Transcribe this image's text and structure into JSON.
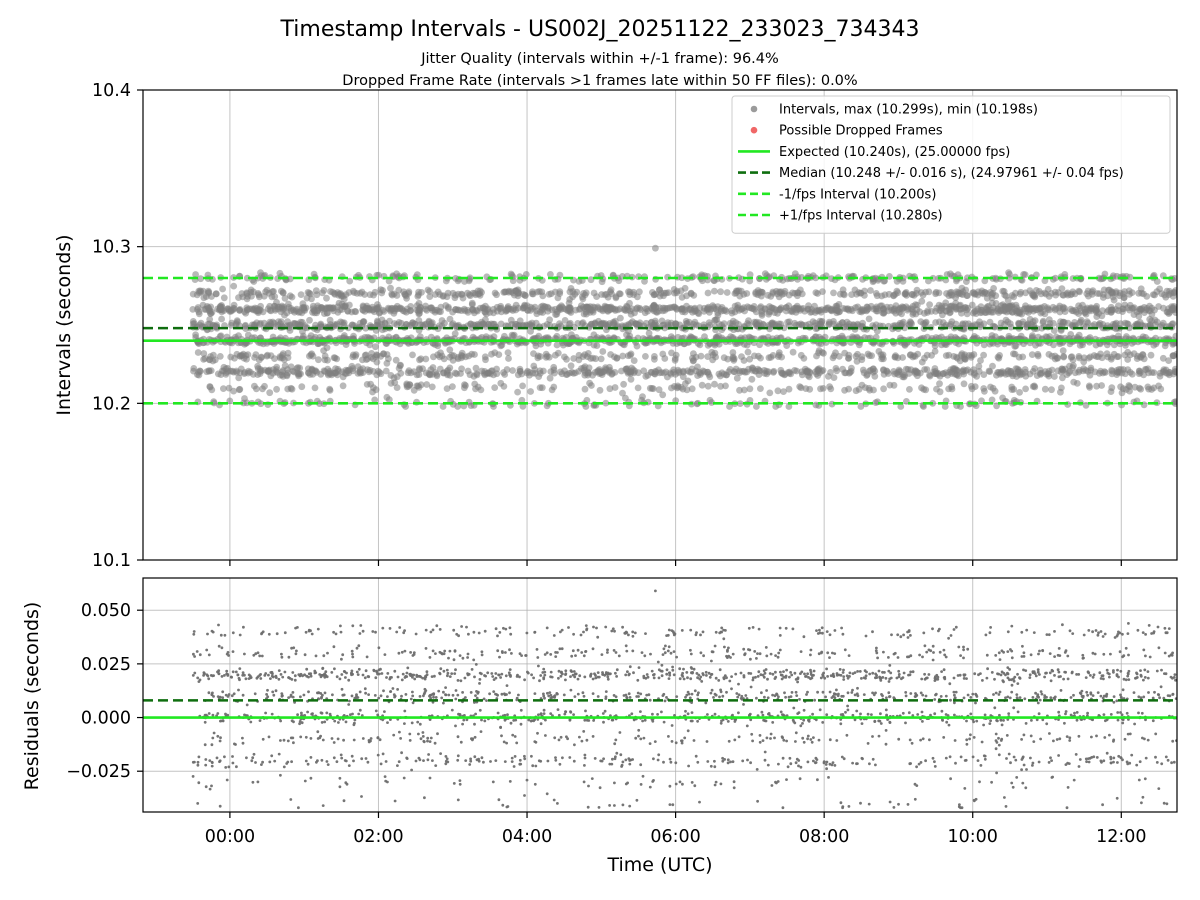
{
  "chart_data": [
    {
      "type": "scatter",
      "title": "Timestamp Intervals - US002J_20251122_233023_734343",
      "subtitle_lines": [
        "Jitter Quality (intervals within +/-1 frame): 96.4%",
        "Dropped Frame Rate (intervals >1 frames late within 50 FF files): 0.0%"
      ],
      "ylabel": "Intervals (seconds)",
      "ylim": [
        10.1,
        10.4
      ],
      "yticks": [
        10.1,
        10.2,
        10.3,
        10.4
      ],
      "ytick_labels": [
        "10.1",
        "10.2",
        "10.3",
        "10.4"
      ],
      "xlim_hours": [
        -1.17,
        12.75
      ],
      "xticks_hours": [
        0,
        2,
        4,
        6,
        8,
        10,
        12
      ],
      "grid": true,
      "legend_position": "top-right",
      "legend": [
        {
          "label": "Intervals, max (10.299s), min (10.198s)",
          "kind": "marker",
          "color": "#9b9b9b"
        },
        {
          "label": "Possible Dropped Frames",
          "kind": "marker",
          "color": "#f06767"
        },
        {
          "label": "Expected (10.240s), (25.00000 fps)",
          "kind": "solid",
          "color": "#22e822"
        },
        {
          "label": "Median (10.248 +/- 0.016 s), (24.97961 +/- 0.04 fps)",
          "kind": "dashed",
          "color": "#0f6e0f"
        },
        {
          "label": "-1/fps Interval (10.200s)",
          "kind": "dashed",
          "color": "#22e822"
        },
        {
          "label": "+1/fps Interval (10.280s)",
          "kind": "dashed",
          "color": "#22e822"
        }
      ],
      "reference_lines": [
        {
          "name": "expected",
          "y": 10.24,
          "style": "solid",
          "color": "#22e822"
        },
        {
          "name": "median",
          "y": 10.248,
          "style": "dashed",
          "color": "#0f6e0f"
        },
        {
          "name": "minus-one-fps",
          "y": 10.2,
          "style": "dashed",
          "color": "#22e822"
        },
        {
          "name": "plus-one-fps",
          "y": 10.28,
          "style": "dashed",
          "color": "#22e822"
        }
      ],
      "series": [
        {
          "name": "Intervals",
          "color": "#8c8c8c",
          "x_range_hours": [
            -0.5,
            12.75
          ],
          "max": 10.299,
          "min": 10.198,
          "levels": [
            {
              "y": 10.24,
              "weight": 0.2
            },
            {
              "y": 10.26,
              "weight": 0.2
            },
            {
              "y": 10.25,
              "weight": 0.15
            },
            {
              "y": 10.22,
              "weight": 0.14
            },
            {
              "y": 10.27,
              "weight": 0.1
            },
            {
              "y": 10.23,
              "weight": 0.08
            },
            {
              "y": 10.28,
              "weight": 0.06
            },
            {
              "y": 10.21,
              "weight": 0.04
            },
            {
              "y": 10.2,
              "weight": 0.03
            }
          ],
          "spread": 0.0015,
          "count": 4200
        },
        {
          "name": "Possible Dropped Frames",
          "color": "#f06767",
          "points": []
        }
      ]
    },
    {
      "type": "scatter",
      "xlabel": "Time (UTC)",
      "ylabel": "Residuals (seconds)",
      "ylim": [
        -0.044,
        0.065
      ],
      "yticks": [
        -0.025,
        0.0,
        0.025,
        0.05
      ],
      "ytick_labels": [
        "−0.025",
        "0.000",
        "0.025",
        "0.050"
      ],
      "xlim_hours": [
        -1.17,
        12.75
      ],
      "xticks_hours": [
        0,
        2,
        4,
        6,
        8,
        10,
        12
      ],
      "xtick_labels": [
        "00:00",
        "02:00",
        "04:00",
        "06:00",
        "08:00",
        "10:00",
        "12:00"
      ],
      "grid": true,
      "reference_lines": [
        {
          "name": "zero",
          "y": 0.0,
          "style": "solid",
          "color": "#22e822"
        },
        {
          "name": "median-residual",
          "y": 0.008,
          "style": "dashed",
          "color": "#0f6e0f"
        }
      ],
      "series": [
        {
          "name": "Residuals",
          "color": "#777777",
          "x_range_hours": [
            -0.5,
            12.75
          ],
          "max": 0.059,
          "min": -0.042,
          "levels": [
            {
              "y": 0.02,
              "weight": 0.22
            },
            {
              "y": 0.0,
              "weight": 0.2
            },
            {
              "y": 0.01,
              "weight": 0.16
            },
            {
              "y": -0.02,
              "weight": 0.12
            },
            {
              "y": 0.03,
              "weight": 0.1
            },
            {
              "y": -0.01,
              "weight": 0.08
            },
            {
              "y": 0.04,
              "weight": 0.07
            },
            {
              "y": -0.03,
              "weight": 0.03
            },
            {
              "y": -0.04,
              "weight": 0.02
            }
          ],
          "spread": 0.0015,
          "count": 2600
        }
      ]
    }
  ]
}
